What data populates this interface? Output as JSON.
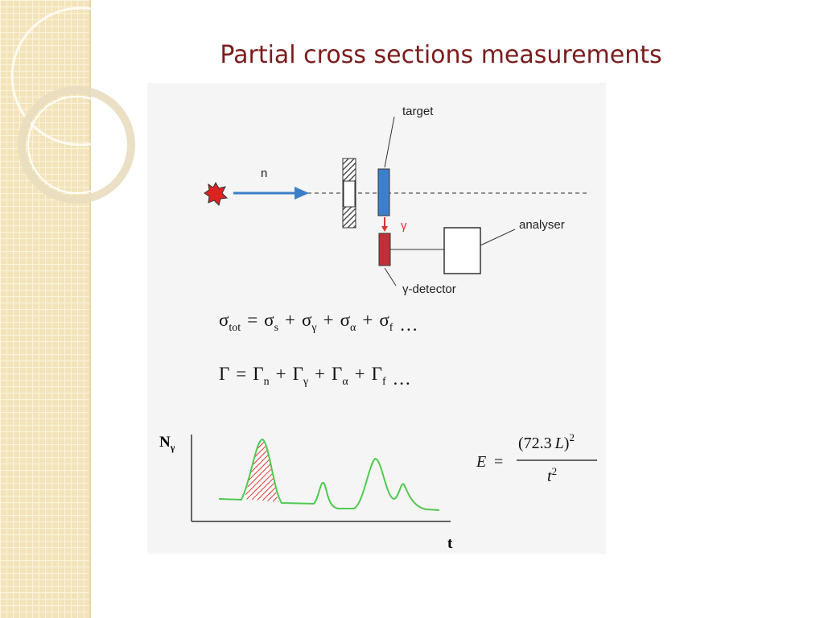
{
  "title": "Partial cross sections measurements",
  "diagram": {
    "neutron": "n",
    "target": "target",
    "gamma": "γ",
    "analyser": "analyser",
    "detector": "γ-detector"
  },
  "equations": [
    {
      "terms": [
        {
          "symbol": "σ",
          "sub": "tot"
        },
        {
          "symbol": "σ",
          "sub": "s"
        },
        {
          "symbol": "σ",
          "sub": "γ"
        },
        {
          "symbol": "σ",
          "sub": "α"
        },
        {
          "symbol": "σ",
          "sub": "f"
        }
      ],
      "operators": [
        "=",
        "+",
        "+",
        "+"
      ],
      "ellipsis": "…"
    },
    {
      "terms": [
        {
          "symbol": "Γ"
        },
        {
          "symbol": "Γ",
          "sub": "n"
        },
        {
          "symbol": "Γ",
          "sub": "γ"
        },
        {
          "symbol": "Γ",
          "sub": "α"
        },
        {
          "symbol": "Γ",
          "sub": "f"
        }
      ],
      "operators": [
        "=",
        "+",
        "+",
        "+"
      ],
      "ellipsis": "…"
    }
  ],
  "plot": {
    "y_label": {
      "symbol": "N",
      "sub": "γ"
    },
    "x_label": "t"
  },
  "formula": {
    "lhs": "E",
    "equals": "=",
    "numerator": {
      "open": "(",
      "number": "72.3",
      "variable": "L",
      "close": ")",
      "power": "2"
    },
    "denominator": {
      "variable": "t",
      "power": "2"
    }
  }
}
